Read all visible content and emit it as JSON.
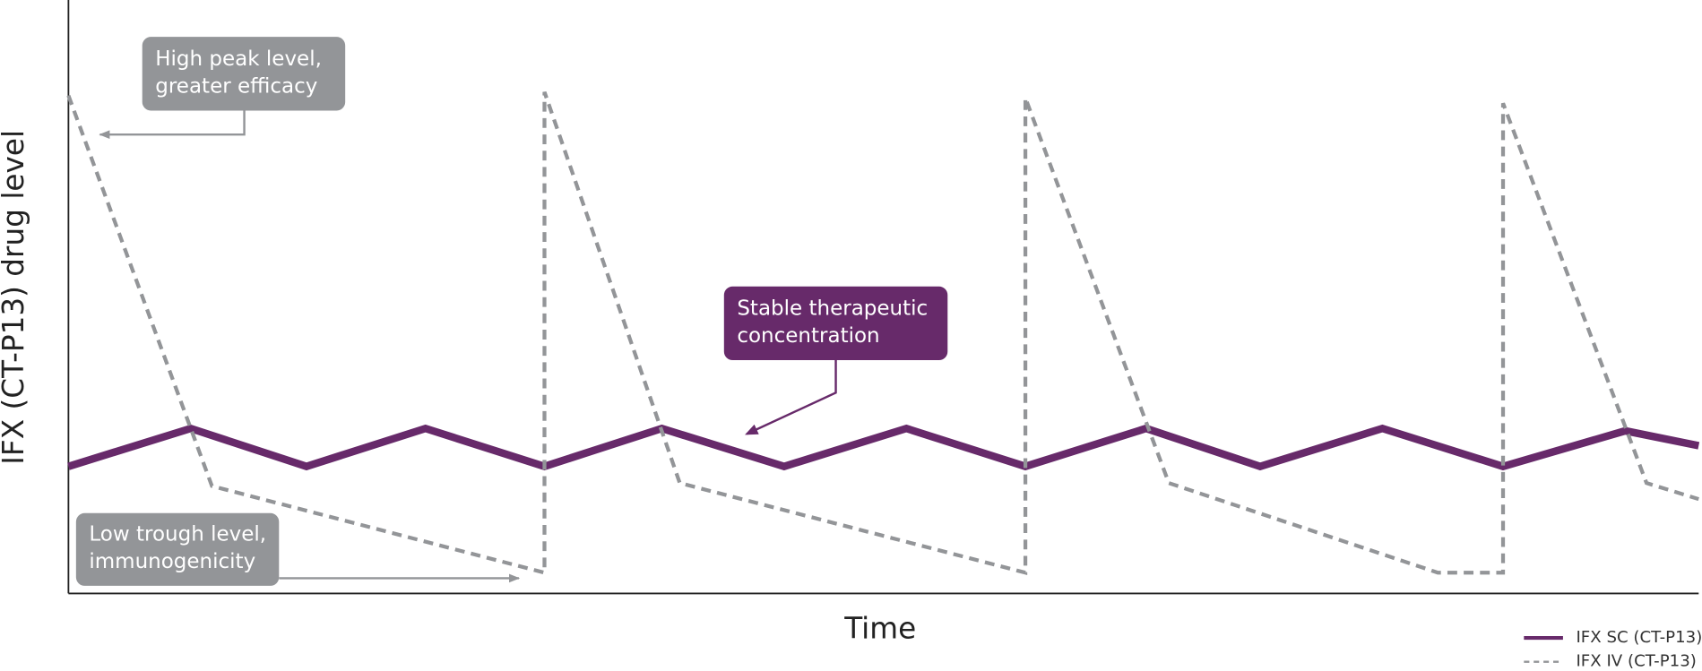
{
  "chart_data": {
    "type": "line",
    "x_label": "Time",
    "y_label": "IFX (CT-P13) drug level",
    "xlim": [
      0,
      100
    ],
    "ylim": [
      0,
      100
    ],
    "series": [
      {
        "name": "IFX SC (CT-P13)",
        "color": "#672a6a",
        "style": "solid",
        "x": [
          0,
          7.5,
          14.6,
          21.9,
          29.2,
          36.4,
          43.9,
          51.4,
          58.7,
          66.1,
          73.1,
          80.6,
          88.0,
          95.5,
          100
        ],
        "values": [
          21.4,
          27.8,
          21.4,
          27.8,
          21.4,
          27.8,
          21.4,
          27.8,
          21.4,
          27.8,
          21.4,
          27.8,
          21.4,
          27.4,
          24.9
        ]
      },
      {
        "name": "IFX IV (CT-P13)",
        "color": "#939598",
        "style": "dashed",
        "x": [
          0,
          8.8,
          29.2,
          29.2,
          37.5,
          58.7,
          58.7,
          67.5,
          84.0,
          88.0,
          88.0,
          96.8,
          100
        ],
        "values": [
          83.9,
          18.1,
          3.5,
          84.5,
          18.6,
          3.5,
          83.5,
          18.6,
          3.5,
          3.5,
          82.6,
          18.6,
          15.9
        ]
      }
    ],
    "annotations": [
      {
        "lines": [
          "High peak level,",
          "greater efficacy"
        ]
      },
      {
        "lines": [
          "Stable therapeutic",
          "concentration"
        ]
      },
      {
        "lines": [
          "Low trough level,",
          "immunogenicity"
        ]
      }
    ]
  }
}
